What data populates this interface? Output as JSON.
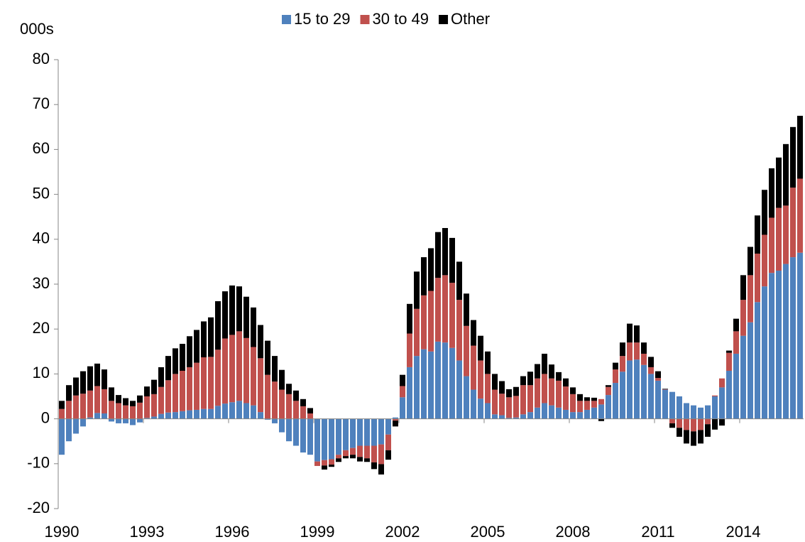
{
  "chart_data": {
    "type": "stacked_bar",
    "ylabel": "000s",
    "categories": [
      "1990",
      null,
      null,
      null,
      null,
      null,
      null,
      null,
      null,
      null,
      null,
      null,
      "1993",
      null,
      null,
      null,
      null,
      null,
      null,
      null,
      null,
      null,
      null,
      null,
      "1996",
      null,
      null,
      null,
      null,
      null,
      null,
      null,
      null,
      null,
      null,
      null,
      "1999",
      null,
      null,
      null,
      null,
      null,
      null,
      null,
      null,
      null,
      null,
      null,
      "2002",
      null,
      null,
      null,
      null,
      null,
      null,
      null,
      null,
      null,
      null,
      null,
      "2005",
      null,
      null,
      null,
      null,
      null,
      null,
      null,
      null,
      null,
      null,
      null,
      "2008",
      null,
      null,
      null,
      null,
      null,
      null,
      null,
      null,
      null,
      null,
      null,
      "2011",
      null,
      null,
      null,
      null,
      null,
      null,
      null,
      null,
      null,
      null,
      null,
      "2014",
      null,
      null,
      null,
      null,
      null,
      null,
      null,
      null
    ],
    "series": [
      {
        "name": "15 to 29",
        "color": "#4f81bd",
        "values": [
          -8,
          -5,
          -3.3,
          -1.7,
          0.3,
          1.3,
          1.2,
          -0.6,
          -1,
          -1,
          -1.4,
          -0.8,
          0.2,
          0.5,
          1.1,
          1.4,
          1.5,
          1.7,
          1.9,
          2,
          2.2,
          2.2,
          2.9,
          3.4,
          3.7,
          4,
          3.5,
          3,
          1.5,
          -0.2,
          -1,
          -3,
          -5,
          -6,
          -7.5,
          -8,
          -9.5,
          -9.2,
          -9,
          -8,
          -7,
          -6.5,
          -6,
          -6,
          -6,
          -5.7,
          -3.5,
          0.3,
          4.8,
          11.5,
          14,
          15.5,
          15,
          17.2,
          17,
          15.8,
          13,
          9.5,
          6.5,
          4.5,
          3.5,
          1,
          0.8,
          0.2,
          0.3,
          1,
          1.5,
          2.5,
          3.5,
          3,
          2.5,
          2,
          1.5,
          1.5,
          2,
          2.5,
          3.2,
          5.3,
          8,
          10.5,
          13,
          13.2,
          12,
          10,
          8.5,
          6.5,
          6,
          5,
          3.5,
          3,
          2.5,
          3,
          5,
          7,
          10.7,
          14.5,
          18.5,
          21.5,
          26,
          29.5,
          32.5,
          33,
          34.5,
          36,
          37
        ]
      },
      {
        "name": "30 to 49",
        "color": "#c0504d",
        "values": [
          2.2,
          4,
          5.2,
          5.6,
          6,
          6,
          5.4,
          4,
          3.5,
          3,
          2.8,
          3.6,
          4.8,
          5,
          6,
          7.2,
          8.5,
          9,
          9.6,
          10.5,
          11.5,
          11.6,
          12.5,
          14.5,
          15,
          15.5,
          14.5,
          13,
          12,
          9.8,
          8.3,
          6.5,
          5.5,
          4,
          2.8,
          1.2,
          -1,
          -1.2,
          -1.2,
          -0.8,
          -1.3,
          -1.5,
          -2.5,
          -2.8,
          -3.7,
          -4.4,
          -3.5,
          -0.4,
          2.5,
          7.5,
          10.5,
          12,
          13.5,
          14.2,
          15,
          14.5,
          13.5,
          11.2,
          9.8,
          8.5,
          6.5,
          5.5,
          4.8,
          4.6,
          4.8,
          6.5,
          6,
          6.5,
          6.5,
          6,
          6,
          5.2,
          4,
          2.5,
          2,
          1.5,
          1.2,
          1.8,
          3,
          3.5,
          4,
          3.8,
          2.5,
          1.5,
          0.6,
          0.1,
          -1,
          -2,
          -2.5,
          -2.8,
          -2.5,
          -1.2,
          0.2,
          2,
          4,
          5,
          8,
          10.5,
          10.8,
          11.5,
          12.3,
          14,
          13,
          15.5,
          16.5
        ]
      },
      {
        "name": "Other",
        "color": "#000000",
        "values": [
          1.8,
          3.5,
          4,
          5,
          5.4,
          5,
          4.4,
          3,
          1.8,
          1.6,
          1.2,
          1.6,
          2.2,
          3.2,
          4.4,
          5.4,
          5.7,
          6,
          6.9,
          7.3,
          8,
          8.8,
          10.8,
          10.5,
          11,
          10,
          9.2,
          8.8,
          7.4,
          7.6,
          5.7,
          4.4,
          2.3,
          2.3,
          1.6,
          1.2,
          0,
          -0.9,
          -0.5,
          -0.8,
          -0.5,
          -0.8,
          -1,
          -0.8,
          -1.5,
          -2.3,
          -2.1,
          -1.3,
          2.5,
          6.6,
          8.3,
          8.5,
          9.5,
          10.2,
          10.5,
          10,
          8.5,
          7.2,
          5.7,
          5.5,
          5,
          3.5,
          2.8,
          1.8,
          2,
          2,
          3,
          3.2,
          4.5,
          3.1,
          1.9,
          1.8,
          1.5,
          1.5,
          0.8,
          0.7,
          -0.5,
          0.4,
          1.5,
          3,
          4.2,
          3.8,
          2.5,
          2.3,
          1.5,
          0.1,
          -1,
          -2,
          -3,
          -3.2,
          -3,
          -2.8,
          -2.4,
          -1.5,
          0.5,
          2.8,
          5.5,
          6.3,
          8.5,
          10,
          11,
          11.2,
          13.7,
          13.5,
          14
        ]
      }
    ],
    "ylim": [
      -20,
      80
    ],
    "yticks": [
      -20,
      -10,
      0,
      10,
      20,
      30,
      40,
      50,
      60,
      70,
      80
    ],
    "grid": false,
    "legend": "top"
  }
}
